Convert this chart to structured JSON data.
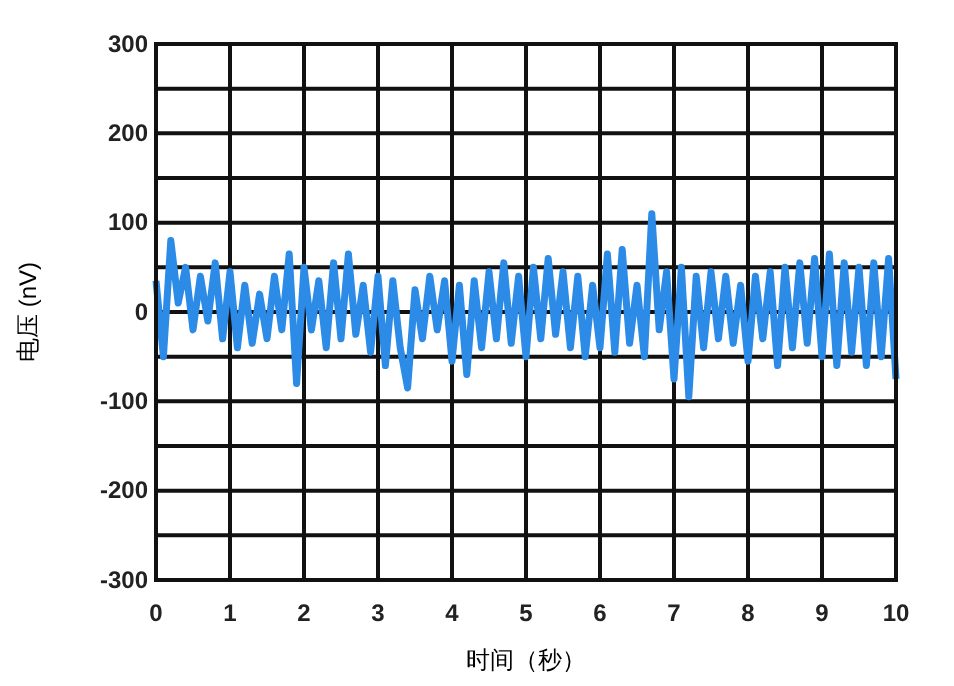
{
  "chart_data": {
    "type": "line",
    "xlabel": "时间（秒）",
    "ylabel": "电压 (nV)",
    "xlim": [
      0,
      10
    ],
    "xticks": [
      0,
      1,
      2,
      3,
      4,
      5,
      6,
      7,
      8,
      9,
      10
    ],
    "ylim": [
      -300,
      300
    ],
    "yticks": [
      -300,
      {
        "value": -250,
        "label": null
      },
      -200,
      {
        "value": -150,
        "label": null
      },
      -100,
      {
        "value": -50,
        "label": null
      },
      0,
      {
        "value": 50,
        "label": null
      },
      100,
      {
        "value": 150,
        "label": null
      },
      200,
      {
        "value": 250,
        "label": null
      },
      300
    ],
    "grid": true,
    "x": [
      0,
      0.1,
      0.2,
      0.3,
      0.4,
      0.5,
      0.6,
      0.7,
      0.8,
      0.9,
      1,
      1.1,
      1.2,
      1.3,
      1.4,
      1.5,
      1.6,
      1.7,
      1.8,
      1.9,
      2,
      2.1,
      2.2,
      2.3,
      2.4,
      2.5,
      2.6,
      2.7,
      2.8,
      2.9,
      3,
      3.1,
      3.2,
      3.3,
      3.4,
      3.5,
      3.6,
      3.7,
      3.8,
      3.9,
      4,
      4.1,
      4.2,
      4.3,
      4.4,
      4.5,
      4.6,
      4.7,
      4.8,
      4.9,
      5,
      5.1,
      5.2,
      5.3,
      5.4,
      5.5,
      5.6,
      5.7,
      5.8,
      5.9,
      6,
      6.1,
      6.2,
      6.3,
      6.4,
      6.5,
      6.6,
      6.7,
      6.8,
      6.9,
      7,
      7.1,
      7.2,
      7.3,
      7.4,
      7.5,
      7.6,
      7.7,
      7.8,
      7.9,
      8,
      8.1,
      8.2,
      8.3,
      8.4,
      8.5,
      8.6,
      8.7,
      8.8,
      8.9,
      9,
      9.1,
      9.2,
      9.3,
      9.4,
      9.5,
      9.6,
      9.7,
      9.8,
      9.9,
      10
    ],
    "series": [
      {
        "color": "#2b8be6",
        "values": [
          35,
          -50,
          80,
          10,
          50,
          -20,
          40,
          -10,
          55,
          -30,
          45,
          -40,
          30,
          -35,
          20,
          -30,
          40,
          -20,
          65,
          -80,
          50,
          -20,
          35,
          -40,
          55,
          -30,
          65,
          -25,
          30,
          -45,
          40,
          -60,
          35,
          -40,
          -85,
          25,
          -30,
          40,
          -20,
          35,
          -55,
          30,
          -70,
          35,
          -40,
          45,
          -30,
          55,
          -35,
          40,
          -50,
          50,
          -30,
          60,
          -25,
          45,
          -40,
          40,
          -50,
          30,
          -40,
          65,
          -45,
          70,
          -35,
          30,
          -50,
          110,
          -20,
          45,
          -75,
          50,
          -95,
          40,
          -40,
          45,
          -30,
          40,
          -35,
          30,
          -55,
          40,
          -30,
          45,
          -60,
          50,
          -40,
          55,
          -35,
          60,
          -50,
          65,
          -60,
          55,
          -45,
          50,
          -60,
          55,
          -50,
          60,
          -75
        ]
      }
    ]
  }
}
